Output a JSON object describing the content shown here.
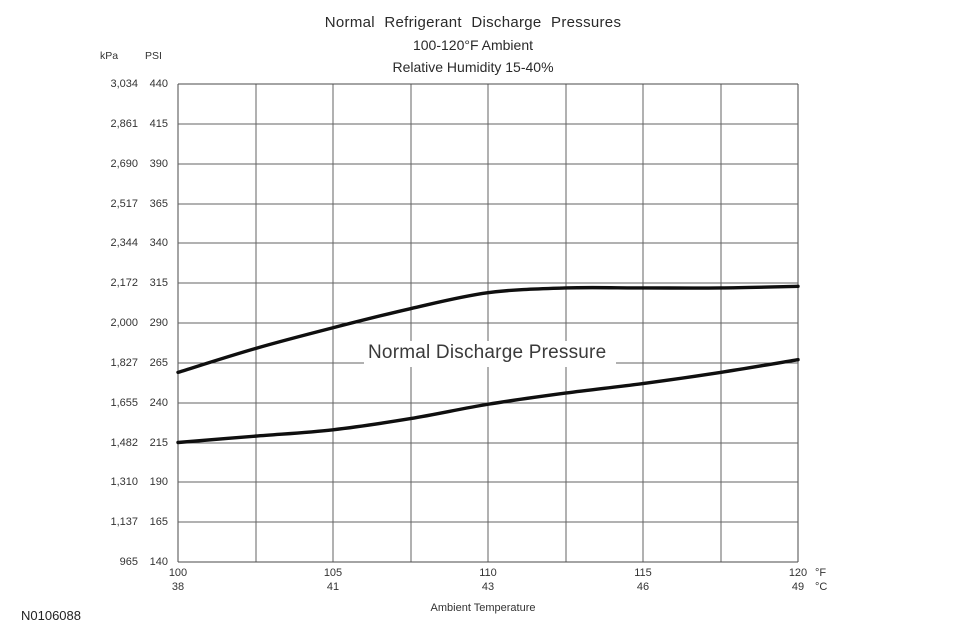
{
  "figure": {
    "title": "Normal Refrigerant Discharge Pressures",
    "subtitle_ambient": "100-120°F Ambient",
    "subtitle_humidity": "Relative Humidity 15-40%",
    "curve_label": "Normal Discharge Pressure",
    "figure_number": "N0106088"
  },
  "y_axis": {
    "unit_headers": [
      "kPa",
      "PSI"
    ],
    "ticks": [
      {
        "kpa": "3,034",
        "psi": 440
      },
      {
        "kpa": "2,861",
        "psi": 415
      },
      {
        "kpa": "2,690",
        "psi": 390
      },
      {
        "kpa": "2,517",
        "psi": 365
      },
      {
        "kpa": "2,344",
        "psi": 340
      },
      {
        "kpa": "2,172",
        "psi": 315
      },
      {
        "kpa": "2,000",
        "psi": 290
      },
      {
        "kpa": "1,827",
        "psi": 265
      },
      {
        "kpa": "1,655",
        "psi": 240
      },
      {
        "kpa": "1,482",
        "psi": 215
      },
      {
        "kpa": "1,310",
        "psi": 190
      },
      {
        "kpa": "1,137",
        "psi": 165
      },
      {
        "kpa": "965",
        "psi": 140
      }
    ]
  },
  "x_axis": {
    "title": "Ambient Temperature",
    "unit_labels": [
      "°F",
      "°C"
    ],
    "ticks": [
      {
        "f": 100,
        "c": 38
      },
      {
        "f": 105,
        "c": 41
      },
      {
        "f": 110,
        "c": 43
      },
      {
        "f": 115,
        "c": 46
      },
      {
        "f": 120,
        "c": 49
      }
    ]
  },
  "chart_data": {
    "type": "line",
    "title": "Normal Refrigerant Discharge Pressures",
    "subtitle": "100-120°F Ambient, Relative Humidity 15-40%",
    "xlabel": "Ambient Temperature (°F / °C)",
    "ylabel": "Discharge pressure (PSI / kPa)",
    "annotation": "Normal Discharge Pressure",
    "legend": "none",
    "grid": true,
    "x": [
      100,
      102.5,
      105,
      107.5,
      110,
      112.5,
      115,
      117.5,
      120
    ],
    "series": [
      {
        "name": "Normal discharge pressure - upper limit (PSI)",
        "values": [
          259,
          274,
          287,
          299,
          309,
          312,
          312,
          312,
          313
        ]
      },
      {
        "name": "Normal discharge pressure - lower limit (PSI)",
        "values": [
          215,
          219,
          223,
          230,
          239,
          246,
          252,
          259,
          267
        ]
      }
    ],
    "x_range_f": [
      100,
      120
    ],
    "y_range_psi": [
      140,
      440
    ],
    "grid_step_x_f": 2.5,
    "grid_step_y_psi": 25
  },
  "colors": {
    "background": "#ffffff",
    "text": "#1e1e1e",
    "grid": "#636363",
    "border": "#4a4a4a",
    "curve": "#0f0f0f"
  }
}
